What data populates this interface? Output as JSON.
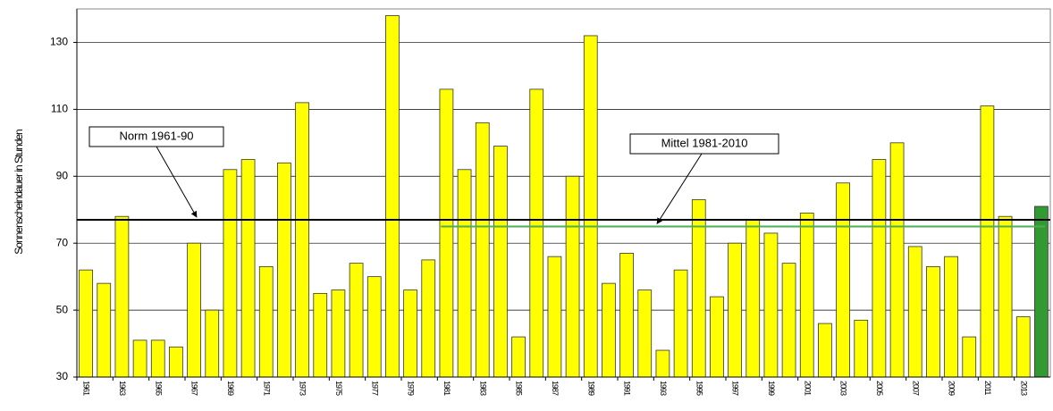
{
  "chart_data": {
    "type": "bar",
    "y_label": "Sonnenscheindauer in Stunden",
    "x": [
      1961,
      1962,
      1963,
      1964,
      1965,
      1966,
      1967,
      1968,
      1969,
      1970,
      1971,
      1972,
      1973,
      1974,
      1975,
      1976,
      1977,
      1978,
      1979,
      1980,
      1981,
      1982,
      1983,
      1984,
      1985,
      1986,
      1987,
      1988,
      1989,
      1990,
      1991,
      1992,
      1993,
      1994,
      1995,
      1996,
      1997,
      1998,
      1999,
      2000,
      2001,
      2002,
      2003,
      2004,
      2005,
      2006,
      2007,
      2008,
      2009,
      2010,
      2011,
      2012,
      2013,
      2014
    ],
    "values": [
      62,
      58,
      78,
      41,
      41,
      39,
      70,
      50,
      92,
      95,
      63,
      94,
      112,
      55,
      56,
      64,
      60,
      138,
      56,
      65,
      116,
      92,
      106,
      99,
      42,
      116,
      66,
      90,
      132,
      58,
      67,
      56,
      38,
      62,
      83,
      54,
      70,
      77,
      73,
      64,
      79,
      46,
      88,
      47,
      95,
      100,
      69,
      63,
      66,
      42,
      111,
      78,
      48,
      81
    ],
    "colors": [
      "#ffff00",
      "#ffff00",
      "#ffff00",
      "#ffff00",
      "#ffff00",
      "#ffff00",
      "#ffff00",
      "#ffff00",
      "#ffff00",
      "#ffff00",
      "#ffff00",
      "#ffff00",
      "#ffff00",
      "#ffff00",
      "#ffff00",
      "#ffff00",
      "#ffff00",
      "#ffff00",
      "#ffff00",
      "#ffff00",
      "#ffff00",
      "#ffff00",
      "#ffff00",
      "#ffff00",
      "#ffff00",
      "#ffff00",
      "#ffff00",
      "#ffff00",
      "#ffff00",
      "#ffff00",
      "#ffff00",
      "#ffff00",
      "#ffff00",
      "#ffff00",
      "#ffff00",
      "#ffff00",
      "#ffff00",
      "#ffff00",
      "#ffff00",
      "#ffff00",
      "#ffff00",
      "#ffff00",
      "#ffff00",
      "#ffff00",
      "#ffff00",
      "#ffff00",
      "#ffff00",
      "#ffff00",
      "#ffff00",
      "#ffff00",
      "#ffff00",
      "#ffff00",
      "#ffff00",
      "#339933"
    ],
    "xlim": [
      1960.5,
      2014.5
    ],
    "xticks": [
      1961,
      1963,
      1965,
      1967,
      1969,
      1971,
      1973,
      1975,
      1977,
      1979,
      1981,
      1983,
      1985,
      1987,
      1989,
      1991,
      1993,
      1995,
      1997,
      1999,
      2001,
      2003,
      2005,
      2007,
      2009,
      2011,
      2013
    ],
    "ylim": [
      30,
      140
    ],
    "yticks": [
      30,
      50,
      70,
      90,
      110,
      130
    ],
    "grid": true,
    "reference_lines": [
      {
        "label": "Norm 1961-90",
        "value": 77,
        "xrange": [
          1960.5,
          2014.5
        ],
        "color": "#000000"
      },
      {
        "label": "Mittel 1981-2010",
        "value": 75,
        "xrange": [
          1980.7,
          2014.2
        ],
        "color": "#4caf50"
      }
    ]
  }
}
